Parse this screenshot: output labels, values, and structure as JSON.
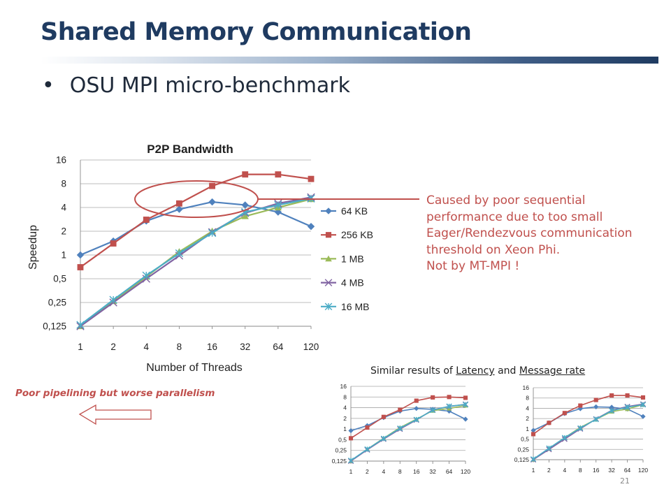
{
  "slide": {
    "title": "Shared Memory Communication",
    "bullet": "OSU MPI micro-benchmark",
    "page_number": "21"
  },
  "annotation": {
    "lines": [
      "Caused by poor sequential",
      "performance due to too small",
      "Eager/Rendezvous communication",
      "threshold on Xeon Phi.",
      "Not by MT-MPI !"
    ]
  },
  "captions": {
    "similar_prefix": "Similar results of ",
    "similar_latency": "Latency",
    "similar_and": " and ",
    "similar_message_rate": "Message rate",
    "poor_pipelining": "Poor pipelining but worse parallelism"
  },
  "colors": {
    "64KB": "#4f81bd",
    "256KB": "#c0504d",
    "1MB": "#9bbb59",
    "4MB": "#8064a2",
    "16MB": "#4bacc6",
    "accent": "#c0504d",
    "title": "#1f3b61"
  },
  "chart_data": [
    {
      "type": "line",
      "title": "P2P Bandwidth",
      "xlabel": "Number of Threads",
      "ylabel": "Speedup",
      "y_scale": "log2",
      "ylim": [
        0.125,
        16
      ],
      "ytick_labels": [
        "0,125",
        "0,25",
        "0,5",
        "1",
        "2",
        "4",
        "8",
        "16"
      ],
      "categories": [
        "1",
        "2",
        "4",
        "8",
        "16",
        "32",
        "64",
        "120"
      ],
      "legend_position": "right",
      "grid": true,
      "series": [
        {
          "name": "64 KB",
          "marker": "diamond",
          "values": [
            1.0,
            1.5,
            2.7,
            3.8,
            4.7,
            4.3,
            3.5,
            2.3
          ]
        },
        {
          "name": "256 KB",
          "marker": "square",
          "values": [
            0.7,
            1.4,
            2.8,
            4.5,
            7.5,
            10.5,
            10.5,
            9.2
          ]
        },
        {
          "name": "1 MB",
          "marker": "triangle",
          "values": [
            0.125,
            0.26,
            0.53,
            1.1,
            2.0,
            3.1,
            4.0,
            5.1
          ]
        },
        {
          "name": "4 MB",
          "marker": "x",
          "values": [
            0.125,
            0.25,
            0.5,
            0.98,
            1.95,
            3.4,
            4.5,
            5.4
          ]
        },
        {
          "name": "16 MB",
          "marker": "star",
          "values": [
            0.13,
            0.27,
            0.55,
            1.05,
            1.9,
            3.5,
            4.3,
            5.2
          ]
        }
      ]
    },
    {
      "type": "line",
      "title": "",
      "subject": "Latency",
      "y_scale": "log2",
      "ylim": [
        0.125,
        16
      ],
      "ytick_labels": [
        "0,125",
        "0,25",
        "0,5",
        "1",
        "2",
        "4",
        "8",
        "16"
      ],
      "categories": [
        "1",
        "2",
        "4",
        "8",
        "16",
        "32",
        "64",
        "120"
      ],
      "grid": true,
      "series": [
        {
          "values": [
            0.9,
            1.25,
            2.1,
            3.2,
            3.8,
            3.6,
            3.2,
            1.9
          ]
        },
        {
          "values": [
            0.55,
            1.1,
            2.2,
            3.5,
            6.3,
            7.8,
            8.0,
            7.6
          ]
        },
        {
          "values": [
            0.125,
            0.27,
            0.55,
            1.1,
            1.9,
            3.3,
            3.8,
            4.6
          ]
        },
        {
          "values": [
            0.125,
            0.26,
            0.52,
            1.0,
            1.8,
            3.5,
            4.3,
            5.0
          ]
        },
        {
          "values": [
            0.13,
            0.27,
            0.54,
            1.05,
            1.85,
            3.4,
            4.4,
            4.9
          ]
        }
      ]
    },
    {
      "type": "line",
      "title": "",
      "subject": "Message rate",
      "y_scale": "log2",
      "ylim": [
        0.125,
        16
      ],
      "ytick_labels": [
        "0,125",
        "0,25",
        "0,5",
        "1",
        "2",
        "4",
        "8",
        "16"
      ],
      "categories": [
        "1",
        "2",
        "4",
        "8",
        "16",
        "32",
        "64",
        "120"
      ],
      "grid": true,
      "series": [
        {
          "values": [
            0.9,
            1.5,
            2.8,
            3.9,
            4.4,
            4.3,
            3.8,
            2.3
          ]
        },
        {
          "values": [
            0.7,
            1.5,
            2.9,
            4.8,
            7.0,
            9.5,
            9.5,
            8.3
          ]
        },
        {
          "values": [
            0.125,
            0.26,
            0.55,
            1.1,
            1.9,
            3.2,
            3.8,
            5.1
          ]
        },
        {
          "values": [
            0.125,
            0.25,
            0.5,
            1.0,
            1.95,
            3.5,
            4.5,
            5.3
          ]
        },
        {
          "values": [
            0.13,
            0.27,
            0.55,
            1.05,
            1.9,
            3.4,
            4.3,
            5.1
          ]
        }
      ]
    }
  ]
}
